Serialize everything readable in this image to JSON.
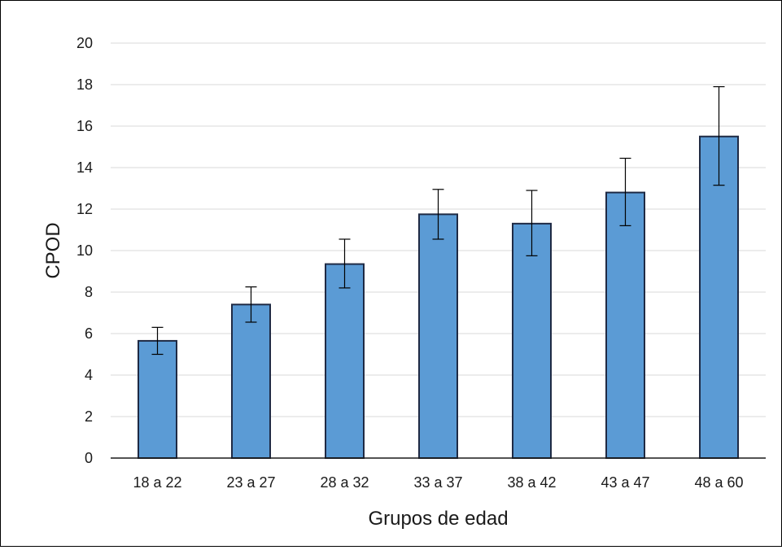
{
  "chart_data": {
    "type": "bar",
    "title": "",
    "xlabel": "Grupos de edad",
    "ylabel": "CPOD",
    "categories": [
      "18 a 22",
      "23 a 27",
      "28 a 32",
      "33 a 37",
      "38 a 42",
      "43 a 47",
      "48 a 60"
    ],
    "values": [
      5.65,
      7.4,
      9.35,
      11.75,
      11.3,
      12.8,
      15.5
    ],
    "error_low": [
      5.0,
      6.55,
      8.2,
      10.55,
      9.75,
      11.2,
      13.15
    ],
    "error_high": [
      6.3,
      8.25,
      10.55,
      12.95,
      12.9,
      14.45,
      17.9
    ],
    "ylim": [
      0,
      20
    ],
    "yticks": [
      0,
      2,
      4,
      6,
      8,
      10,
      12,
      14,
      16,
      18,
      20
    ],
    "grid": true,
    "legend": "none",
    "colors": {
      "bar_fill": "#5b9bd5",
      "bar_stroke": "#1f2a44",
      "grid": "#d9d9d9",
      "error_bar": "#000000"
    }
  }
}
